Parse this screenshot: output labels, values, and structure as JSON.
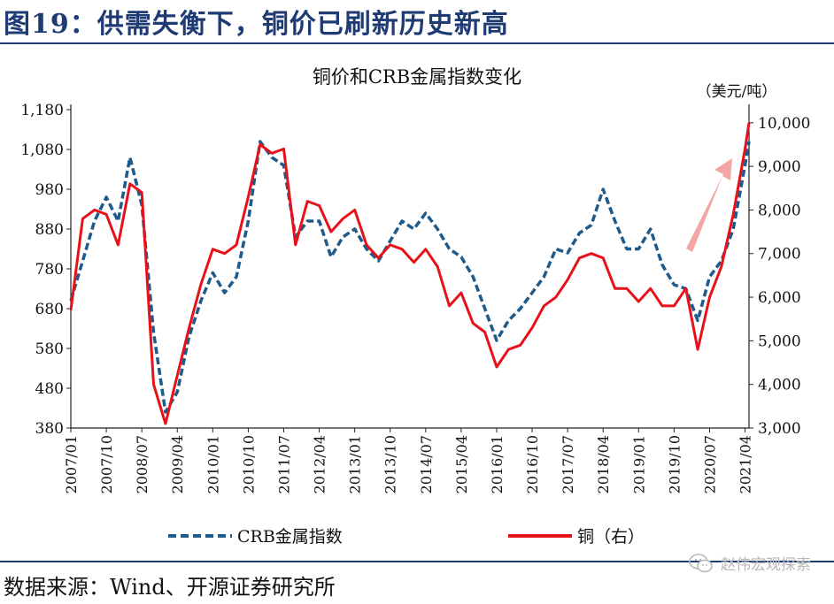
{
  "figure_title": "图19：供需失衡下，铜价已刷新历史新高",
  "source_note": "数据来源：Wind、开源证券研究所",
  "watermark": "赵伟宏观探索",
  "colors": {
    "crb": "#1e5a8a",
    "copper": "#e8111a",
    "arrow": "#f4a6a6",
    "title": "#1f3b73"
  },
  "chart_data": {
    "type": "line",
    "title": "铜价和CRB金属指数变化",
    "right_unit_label": "（美元/吨）",
    "left_axis": {
      "ylim": [
        380,
        1180
      ],
      "ticks": [
        "380",
        "480",
        "580",
        "680",
        "780",
        "880",
        "980",
        "1,080",
        "1,180"
      ]
    },
    "right_axis": {
      "ylim": [
        3000,
        10300
      ],
      "ticks": [
        "3,000",
        "4,000",
        "5,000",
        "6,000",
        "7,000",
        "8,000",
        "9,000",
        "10,000"
      ]
    },
    "x_ticks": [
      "2007/01",
      "2007/10",
      "2008/07",
      "2009/04",
      "2010/01",
      "2010/10",
      "2011/07",
      "2012/04",
      "2013/01",
      "2013/10",
      "2014/07",
      "2015/04",
      "2016/01",
      "2016/10",
      "2017/07",
      "2018/04",
      "2019/01",
      "2019/10",
      "2020/07",
      "2021/04"
    ],
    "legend": [
      "CRB金属指数",
      "铜（右）"
    ],
    "series": [
      {
        "name": "CRB金属指数",
        "axis": "left",
        "style": "dashed",
        "x": [
          "2007/01",
          "2007/04",
          "2007/07",
          "2007/10",
          "2008/01",
          "2008/04",
          "2008/07",
          "2008/10",
          "2009/01",
          "2009/04",
          "2009/07",
          "2009/10",
          "2010/01",
          "2010/04",
          "2010/07",
          "2010/10",
          "2011/01",
          "2011/04",
          "2011/07",
          "2011/10",
          "2012/01",
          "2012/04",
          "2012/07",
          "2012/10",
          "2013/01",
          "2013/04",
          "2013/07",
          "2013/10",
          "2014/01",
          "2014/04",
          "2014/07",
          "2014/10",
          "2015/01",
          "2015/04",
          "2015/07",
          "2015/10",
          "2016/01",
          "2016/04",
          "2016/07",
          "2016/10",
          "2017/01",
          "2017/04",
          "2017/07",
          "2017/10",
          "2018/01",
          "2018/04",
          "2018/07",
          "2018/10",
          "2019/01",
          "2019/04",
          "2019/07",
          "2019/10",
          "2020/01",
          "2020/04",
          "2020/07",
          "2020/10",
          "2021/01",
          "2021/04",
          "2021/05"
        ],
        "values": [
          700,
          800,
          900,
          960,
          900,
          1060,
          940,
          620,
          420,
          470,
          610,
          700,
          770,
          720,
          760,
          900,
          1100,
          1060,
          1040,
          860,
          900,
          900,
          810,
          860,
          880,
          830,
          800,
          850,
          900,
          880,
          920,
          880,
          830,
          810,
          760,
          680,
          600,
          650,
          680,
          720,
          760,
          830,
          820,
          870,
          890,
          980,
          900,
          830,
          830,
          880,
          790,
          740,
          730,
          650,
          760,
          800,
          880,
          1040,
          1100
        ]
      },
      {
        "name": "铜（右）",
        "axis": "right",
        "style": "solid",
        "x": [
          "2007/01",
          "2007/04",
          "2007/07",
          "2007/10",
          "2008/01",
          "2008/04",
          "2008/07",
          "2008/10",
          "2009/01",
          "2009/04",
          "2009/07",
          "2009/10",
          "2010/01",
          "2010/04",
          "2010/07",
          "2010/10",
          "2011/01",
          "2011/04",
          "2011/07",
          "2011/10",
          "2012/01",
          "2012/04",
          "2012/07",
          "2012/10",
          "2013/01",
          "2013/04",
          "2013/07",
          "2013/10",
          "2014/01",
          "2014/04",
          "2014/07",
          "2014/10",
          "2015/01",
          "2015/04",
          "2015/07",
          "2015/10",
          "2016/01",
          "2016/04",
          "2016/07",
          "2016/10",
          "2017/01",
          "2017/04",
          "2017/07",
          "2017/10",
          "2018/01",
          "2018/04",
          "2018/07",
          "2018/10",
          "2019/01",
          "2019/04",
          "2019/07",
          "2019/10",
          "2020/01",
          "2020/04",
          "2020/07",
          "2020/10",
          "2021/01",
          "2021/04",
          "2021/05"
        ],
        "values": [
          5700,
          7800,
          8000,
          7900,
          7200,
          8600,
          8400,
          4000,
          3100,
          4200,
          5300,
          6300,
          7100,
          7000,
          7200,
          8300,
          9500,
          9300,
          9400,
          7200,
          8200,
          8100,
          7500,
          7800,
          8000,
          7200,
          6900,
          7200,
          7100,
          6800,
          7100,
          6700,
          5800,
          6100,
          5400,
          5200,
          4400,
          4800,
          4900,
          5300,
          5800,
          6000,
          6400,
          6900,
          7000,
          6900,
          6200,
          6200,
          5900,
          6200,
          5800,
          5800,
          6200,
          4800,
          6000,
          6700,
          7900,
          9400,
          10000
        ]
      }
    ]
  }
}
